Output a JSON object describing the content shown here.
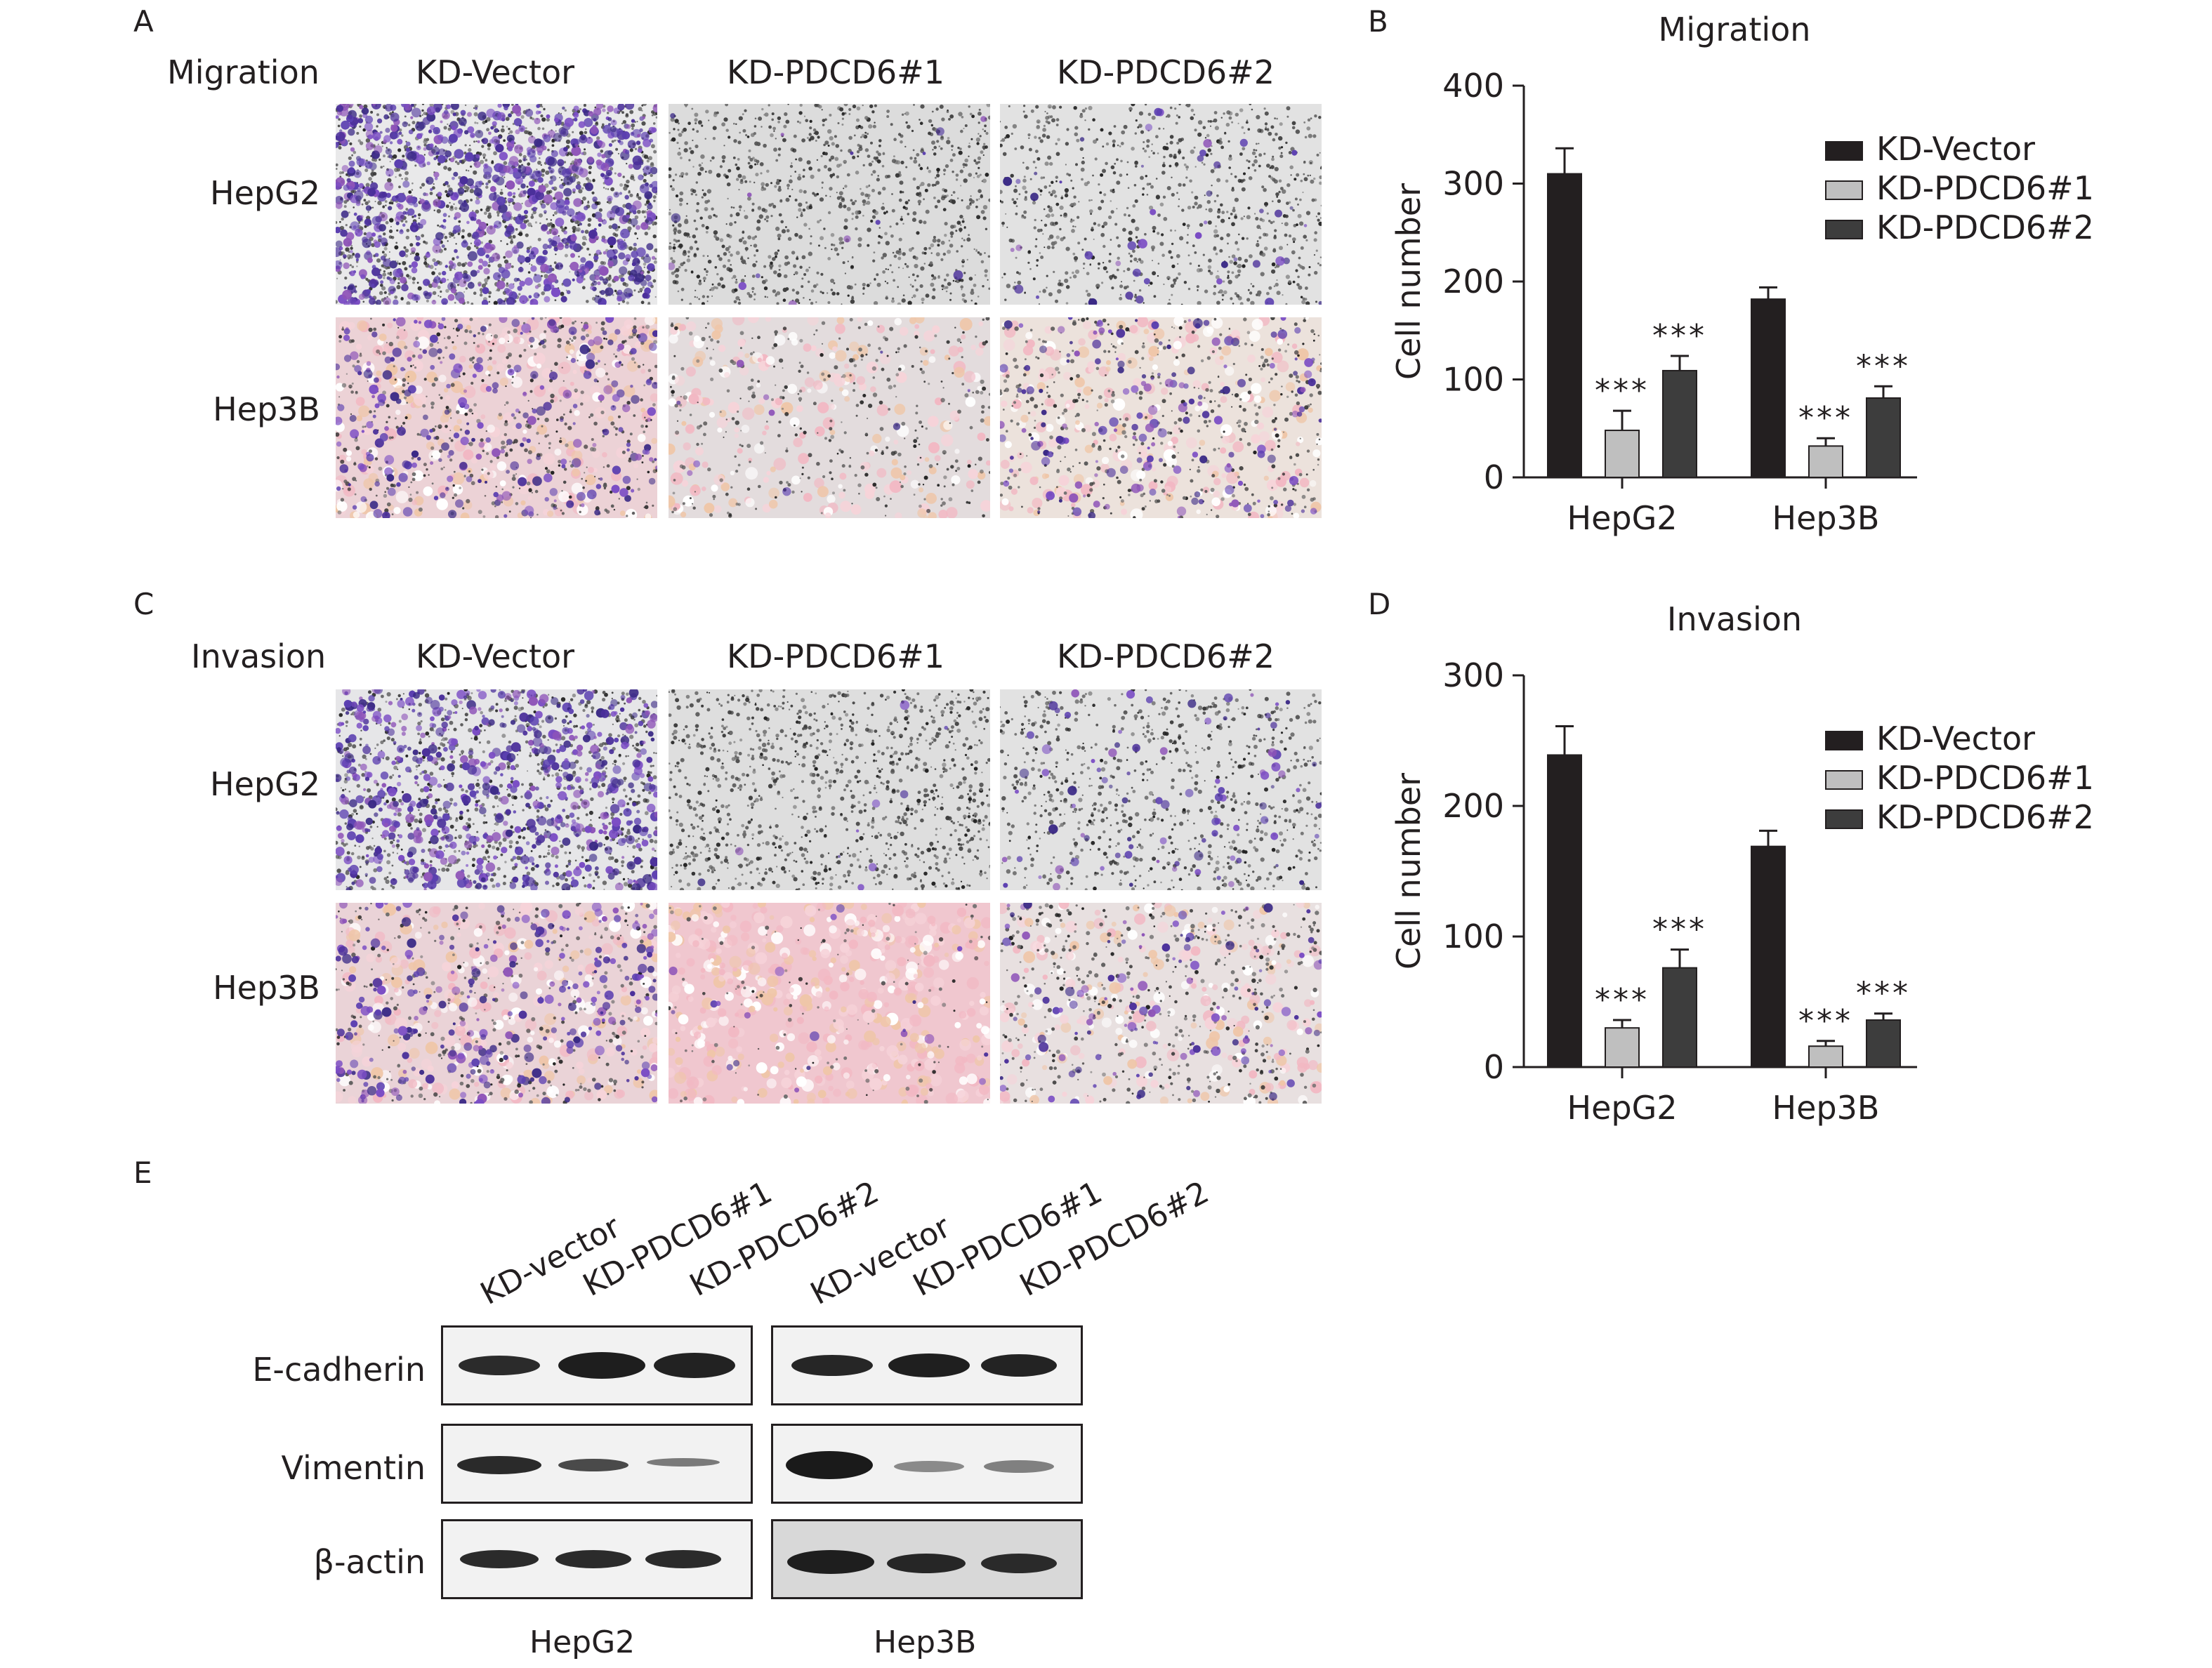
{
  "panels": {
    "A": {
      "letter": "A",
      "assay": "Migration",
      "columns": [
        "KD-Vector",
        "KD-PDCD6#1",
        "KD-PDCD6#2"
      ],
      "rows": [
        "HepG2",
        "Hep3B"
      ]
    },
    "B": {
      "letter": "B"
    },
    "C": {
      "letter": "C",
      "assay": "Invasion",
      "columns": [
        "KD-Vector",
        "KD-PDCD6#1",
        "KD-PDCD6#2"
      ],
      "rows": [
        "HepG2",
        "Hep3B"
      ]
    },
    "D": {
      "letter": "D"
    },
    "E": {
      "letter": "E",
      "lanes": [
        "KD-vector",
        "KD-PDCD6#1",
        "KD-PDCD6#2",
        "KD-vector",
        "KD-PDCD6#1",
        "KD-PDCD6#2"
      ],
      "proteins": [
        "E-cadherin",
        "Vimentin",
        "β-actin"
      ],
      "cell_lines": [
        "HepG2",
        "Hep3B"
      ]
    }
  },
  "colors": {
    "KD-Vector": "#231f20",
    "KD-PDCD6#1": "#bfbfbf",
    "KD-PDCD6#2": "#3d3d3d",
    "stain_purple": "#4a2f9a",
    "hep3b_background": "#f4c9cf"
  },
  "chart_data": [
    {
      "type": "bar",
      "title": "Migration",
      "xlabel": "",
      "ylabel": "Cell number",
      "categories": [
        "HepG2",
        "Hep3B"
      ],
      "ylim": [
        0,
        400
      ],
      "yticks": [
        0,
        100,
        200,
        300,
        400
      ],
      "legend_position": "top-right",
      "series": [
        {
          "name": "KD-Vector",
          "values": [
            310,
            182
          ],
          "errors": [
            26,
            12
          ],
          "annotations": [
            "",
            ""
          ]
        },
        {
          "name": "KD-PDCD6#1",
          "values": [
            48,
            32
          ],
          "errors": [
            20,
            8
          ],
          "annotations": [
            "***",
            "***"
          ]
        },
        {
          "name": "KD-PDCD6#2",
          "values": [
            109,
            81
          ],
          "errors": [
            15,
            12
          ],
          "annotations": [
            "***",
            "***"
          ]
        }
      ]
    },
    {
      "type": "bar",
      "title": "Invasion",
      "xlabel": "",
      "ylabel": "Cell number",
      "categories": [
        "HepG2",
        "Hep3B"
      ],
      "ylim": [
        0,
        300
      ],
      "yticks": [
        0,
        100,
        200,
        300
      ],
      "legend_position": "top-right",
      "series": [
        {
          "name": "KD-Vector",
          "values": [
            239,
            169
          ],
          "errors": [
            22,
            12
          ],
          "annotations": [
            "",
            ""
          ]
        },
        {
          "name": "KD-PDCD6#1",
          "values": [
            30,
            16
          ],
          "errors": [
            6,
            4
          ],
          "annotations": [
            "***",
            "***"
          ]
        },
        {
          "name": "KD-PDCD6#2",
          "values": [
            76,
            36
          ],
          "errors": [
            14,
            5
          ],
          "annotations": [
            "***",
            "***"
          ]
        }
      ]
    }
  ]
}
